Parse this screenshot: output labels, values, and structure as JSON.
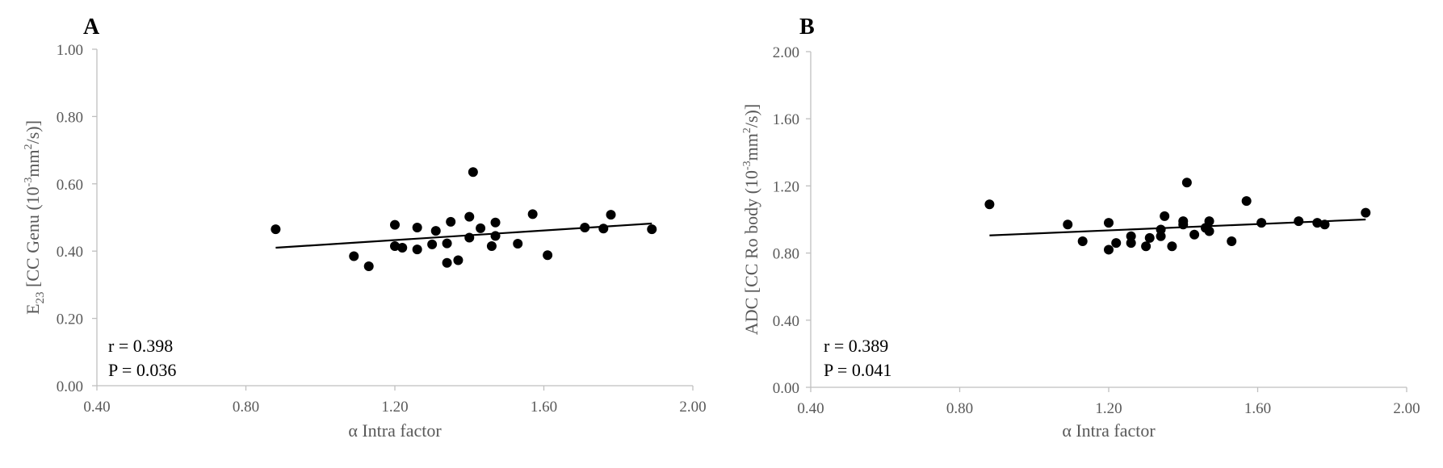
{
  "chart_data": [
    {
      "panel": "A",
      "type": "scatter",
      "xlabel": "α Intra factor",
      "ylabel": {
        "main": "E",
        "sub": "23",
        "rest": " [CC Genu (10",
        "sup_exp": "-3",
        "unit_mid": "mm",
        "sup_unit": "2",
        "unit_end": "/s)]"
      },
      "xlim": [
        0.4,
        2.0
      ],
      "ylim": [
        0.0,
        1.0
      ],
      "xticks": [
        "0.40",
        "0.80",
        "1.20",
        "1.60",
        "2.00"
      ],
      "yticks": [
        "0.00",
        "0.20",
        "0.40",
        "0.60",
        "0.80",
        "1.00"
      ],
      "grid": false,
      "points": [
        [
          0.88,
          0.465
        ],
        [
          1.09,
          0.385
        ],
        [
          1.13,
          0.355
        ],
        [
          1.2,
          0.478
        ],
        [
          1.2,
          0.415
        ],
        [
          1.22,
          0.41
        ],
        [
          1.26,
          0.405
        ],
        [
          1.26,
          0.47
        ],
        [
          1.3,
          0.42
        ],
        [
          1.31,
          0.46
        ],
        [
          1.34,
          0.365
        ],
        [
          1.34,
          0.423
        ],
        [
          1.35,
          0.487
        ],
        [
          1.37,
          0.373
        ],
        [
          1.4,
          0.44
        ],
        [
          1.4,
          0.502
        ],
        [
          1.41,
          0.635
        ],
        [
          1.43,
          0.468
        ],
        [
          1.46,
          0.415
        ],
        [
          1.47,
          0.485
        ],
        [
          1.47,
          0.445
        ],
        [
          1.53,
          0.422
        ],
        [
          1.57,
          0.51
        ],
        [
          1.61,
          0.388
        ],
        [
          1.71,
          0.47
        ],
        [
          1.76,
          0.467
        ],
        [
          1.78,
          0.508
        ],
        [
          1.89,
          0.465
        ]
      ],
      "trendline": [
        [
          0.88,
          0.41
        ],
        [
          1.89,
          0.482
        ]
      ],
      "annotations": [
        "r  = 0.398",
        "P = 0.036"
      ]
    },
    {
      "panel": "B",
      "type": "scatter",
      "xlabel": "α Intra factor",
      "ylabel": {
        "main": "ADC",
        "sub": "",
        "rest": " [CC Ro body (10",
        "sup_exp": "-3",
        "unit_mid": "mm",
        "sup_unit": "2",
        "unit_end": "/s)]"
      },
      "xlim": [
        0.4,
        2.0
      ],
      "ylim": [
        0.0,
        2.0
      ],
      "xticks": [
        "0.40",
        "0.80",
        "1.20",
        "1.60",
        "2.00"
      ],
      "yticks": [
        "0.00",
        "0.40",
        "0.80",
        "1.20",
        "1.60",
        "2.00"
      ],
      "grid": false,
      "points": [
        [
          0.88,
          1.09
        ],
        [
          1.09,
          0.97
        ],
        [
          1.13,
          0.87
        ],
        [
          1.2,
          0.98
        ],
        [
          1.2,
          0.82
        ],
        [
          1.22,
          0.86
        ],
        [
          1.26,
          0.86
        ],
        [
          1.26,
          0.9
        ],
        [
          1.3,
          0.84
        ],
        [
          1.31,
          0.89
        ],
        [
          1.34,
          0.9
        ],
        [
          1.34,
          0.94
        ],
        [
          1.35,
          1.02
        ],
        [
          1.37,
          0.84
        ],
        [
          1.4,
          0.97
        ],
        [
          1.4,
          0.99
        ],
        [
          1.41,
          1.22
        ],
        [
          1.43,
          0.91
        ],
        [
          1.46,
          0.95
        ],
        [
          1.47,
          0.99
        ],
        [
          1.47,
          0.93
        ],
        [
          1.53,
          0.87
        ],
        [
          1.57,
          1.11
        ],
        [
          1.61,
          0.98
        ],
        [
          1.71,
          0.99
        ],
        [
          1.76,
          0.98
        ],
        [
          1.78,
          0.97
        ],
        [
          1.89,
          1.04
        ]
      ],
      "trendline": [
        [
          0.88,
          0.905
        ],
        [
          1.89,
          1.0
        ]
      ],
      "annotations": [
        "r  = 0.389",
        "P = 0.041"
      ]
    }
  ]
}
